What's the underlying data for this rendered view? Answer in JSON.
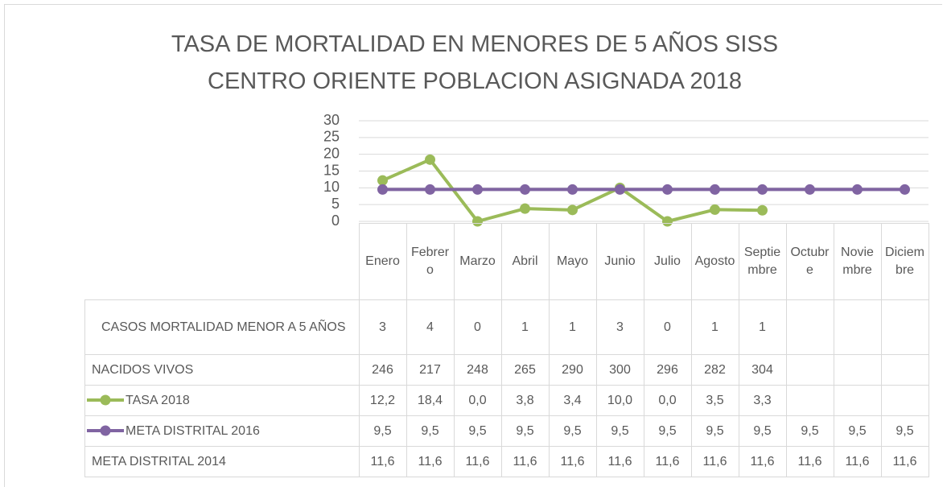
{
  "chart_data": {
    "type": "line",
    "title": "TASA DE MORTALIDAD EN MENORES DE 5 AÑOS SISS CENTRO ORIENTE POBLACION ASIGNADA 2018",
    "categories": [
      "Enero",
      "Febrero",
      "Marzo",
      "Abril",
      "Mayo",
      "Junio",
      "Julio",
      "Agosto",
      "Septiembre",
      "Octubre",
      "Noviembre",
      "Diciembre"
    ],
    "series": [
      {
        "name": "TASA 2018",
        "color": "#9bbb59",
        "values": [
          12.2,
          18.4,
          0.0,
          3.8,
          3.4,
          10.0,
          0.0,
          3.5,
          3.3,
          null,
          null,
          null
        ],
        "value_labels": [
          "12,2",
          "18,4",
          "0,0",
          "3,8",
          "3,4",
          "10,0",
          "0,0",
          "3,5",
          "3,3",
          null,
          null,
          null
        ]
      },
      {
        "name": "META DISTRITAL 2016",
        "color": "#8064a2",
        "values": [
          9.5,
          9.5,
          9.5,
          9.5,
          9.5,
          9.5,
          9.5,
          9.5,
          9.5,
          9.5,
          9.5,
          9.5
        ],
        "value_labels": [
          "9,5",
          "9,5",
          "9,5",
          "9,5",
          "9,5",
          "9,5",
          "9,5",
          "9,5",
          "9,5",
          "9,5",
          "9,5",
          "9,5"
        ]
      }
    ],
    "data_table": [
      {
        "name": "CASOS MORTALIDAD MENOR A 5 AÑOS",
        "values": [
          3,
          4,
          0,
          1,
          1,
          3,
          0,
          1,
          1,
          null,
          null,
          null
        ]
      },
      {
        "name": "NACIDOS VIVOS",
        "values": [
          246,
          217,
          248,
          265,
          290,
          300,
          296,
          282,
          304,
          null,
          null,
          null
        ]
      },
      {
        "name": "META DISTRITAL 2014",
        "values": [
          11.6,
          11.6,
          11.6,
          11.6,
          11.6,
          11.6,
          11.6,
          11.6,
          11.6,
          11.6,
          11.6,
          11.6
        ],
        "value_labels": [
          "11,6",
          "11,6",
          "11,6",
          "11,6",
          "11,6",
          "11,6",
          "11,6",
          "11,6",
          "11,6",
          "11,6",
          "11,6",
          "11,6"
        ]
      }
    ],
    "ylim": [
      0,
      30
    ],
    "yticks": [
      0,
      5,
      10,
      15,
      20,
      25,
      30
    ],
    "grid": true
  }
}
